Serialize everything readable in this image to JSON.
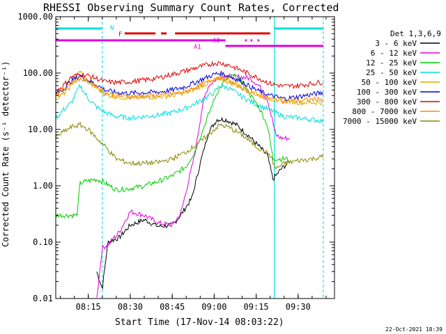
{
  "chart_data": {
    "type": "line",
    "title": "RHESSI Observing Summary Count Rates, Corrected",
    "xlabel": "Start Time (17-Nov-14 08:03:22)",
    "ylabel": "Corrected Count Rate (s⁻¹ detector⁻¹)",
    "yscale": "log",
    "ylim": [
      0.01,
      1000
    ],
    "xlim": [
      "08:03:22",
      "09:43:00"
    ],
    "grid": false,
    "legend_position": "right",
    "x_ticks": [
      "08:15",
      "08:30",
      "08:45",
      "09:00",
      "09:15",
      "09:30"
    ],
    "y_ticks": [
      "1000.00",
      "100.00",
      "10.00",
      "1.00",
      "0.10",
      "0.01"
    ],
    "legend_header": "Det 1,3,6,9",
    "timestamp": "22-Oct-2021 18:39",
    "vertical_markers": [
      {
        "time": "08:03:22",
        "color": "#00dddd",
        "style": "solid"
      },
      {
        "time": "08:20:00",
        "color": "#00dddd",
        "style": "dashed"
      },
      {
        "time": "09:21:30",
        "color": "#00dddd",
        "style": "solid"
      },
      {
        "time": "09:21:30",
        "color": "#00dddd",
        "style": "dashed"
      },
      {
        "time": "09:39:00",
        "color": "#00dddd",
        "style": "dashed"
      }
    ],
    "flag_bars": [
      {
        "label": "N",
        "color": "#00dddd",
        "segments": [
          [
            "08:03:22",
            "08:20:00"
          ],
          [
            "09:21:30",
            "09:39:00"
          ]
        ]
      },
      {
        "label": "F",
        "color": "#dd0000",
        "segments": [
          [
            "08:28:00",
            "08:39:00"
          ],
          [
            "08:41:00",
            "08:43:00"
          ],
          [
            "08:46:00",
            "09:20:00"
          ]
        ]
      },
      {
        "label": "A0",
        "color": "#dd00dd",
        "segments": [
          [
            "08:03:22",
            "09:04:00"
          ],
          [
            "09:11:00",
            "09:11:40"
          ],
          [
            "09:13:00",
            "09:13:40"
          ],
          [
            "09:15:30",
            "09:16:10"
          ]
        ]
      },
      {
        "label": "A1",
        "color": "#dd00dd",
        "segments": [
          [
            "09:04:00",
            "09:39:00"
          ]
        ]
      }
    ],
    "series": [
      {
        "name": "3 - 6 keV",
        "color": "#000000",
        "x": [
          "08:18",
          "08:20",
          "08:22",
          "08:26",
          "08:30",
          "08:35",
          "08:40",
          "08:45",
          "08:48",
          "08:52",
          "08:55",
          "08:58",
          "09:01",
          "09:04",
          "09:08",
          "09:12",
          "09:16",
          "09:19",
          "09:21",
          "09:24",
          "09:27"
        ],
        "values": [
          0.03,
          0.015,
          0.1,
          0.12,
          0.2,
          0.25,
          0.19,
          0.2,
          0.3,
          0.6,
          2.5,
          9,
          15,
          15,
          12,
          8,
          5,
          3.5,
          1.3,
          2,
          2.7
        ]
      },
      {
        "name": "6 - 12 keV",
        "color": "#dd00dd",
        "x": [
          "08:18",
          "08:20",
          "08:22",
          "08:26",
          "08:30",
          "08:35",
          "08:40",
          "08:45",
          "08:48",
          "08:50",
          "08:53",
          "08:56",
          "08:58",
          "09:01",
          "09:04",
          "09:07",
          "09:10",
          "09:13",
          "09:16",
          "09:19",
          "09:22",
          "09:24",
          "09:27"
        ],
        "values": [
          0.01,
          0.08,
          0.09,
          0.15,
          0.35,
          0.3,
          0.22,
          0.2,
          0.32,
          0.8,
          3.5,
          30,
          60,
          80,
          90,
          85,
          85,
          80,
          60,
          35,
          8,
          7,
          7
        ]
      },
      {
        "name": "12 - 25 keV",
        "color": "#00cc00",
        "x": [
          "08:03",
          "08:11",
          "08:12",
          "08:14",
          "08:18",
          "08:20",
          "08:25",
          "08:30",
          "08:35",
          "08:40",
          "08:45",
          "08:50",
          "08:53",
          "08:56",
          "08:59",
          "09:01",
          "09:04",
          "09:07",
          "09:10",
          "09:13",
          "09:16",
          "09:19",
          "09:21",
          "09:24",
          "09:27"
        ],
        "values": [
          0.3,
          0.3,
          1.1,
          1.2,
          1.3,
          1.2,
          0.85,
          0.9,
          1,
          1.2,
          1.5,
          2.2,
          4,
          10,
          25,
          45,
          75,
          90,
          70,
          40,
          25,
          12,
          3,
          3,
          3
        ]
      },
      {
        "name": "25 - 50 keV",
        "color": "#00dddd",
        "x": [
          "08:03",
          "08:06",
          "08:09",
          "08:12",
          "08:15",
          "08:18",
          "08:21",
          "08:25",
          "08:30",
          "08:35",
          "08:40",
          "08:45",
          "08:50",
          "08:55",
          "09:00",
          "09:02",
          "09:05",
          "09:10",
          "09:15",
          "09:20",
          "09:25",
          "09:30",
          "09:35",
          "09:39"
        ],
        "values": [
          15,
          22,
          30,
          60,
          35,
          25,
          20,
          17,
          16,
          17,
          18,
          20,
          24,
          32,
          45,
          60,
          55,
          38,
          28,
          22,
          17,
          16,
          15,
          14
        ]
      },
      {
        "name": "50 - 100 keV",
        "color": "#ddaa00",
        "x": [
          "08:03",
          "08:06",
          "08:09",
          "08:12",
          "08:15",
          "08:18",
          "08:21",
          "08:25",
          "08:30",
          "08:35",
          "08:40",
          "08:45",
          "08:50",
          "08:55",
          "09:00",
          "09:02",
          "09:05",
          "09:10",
          "09:15",
          "09:20",
          "09:25",
          "09:30",
          "09:35",
          "09:39"
        ],
        "values": [
          35,
          42,
          60,
          110,
          70,
          55,
          42,
          38,
          36,
          37,
          38,
          40,
          45,
          58,
          75,
          80,
          70,
          55,
          42,
          35,
          32,
          30,
          30,
          30
        ]
      },
      {
        "name": "100 - 300 keV",
        "color": "#0000cc",
        "x": [
          "08:03",
          "08:06",
          "08:09",
          "08:12",
          "08:15",
          "08:18",
          "08:21",
          "08:25",
          "08:30",
          "08:35",
          "08:40",
          "08:45",
          "08:50",
          "08:55",
          "09:00",
          "09:02",
          "09:05",
          "09:10",
          "09:15",
          "09:20",
          "09:25",
          "09:30",
          "09:35",
          "09:39"
        ],
        "values": [
          42,
          52,
          72,
          90,
          75,
          62,
          50,
          45,
          44,
          45,
          46,
          50,
          58,
          75,
          95,
          100,
          90,
          70,
          50,
          40,
          35,
          38,
          42,
          45
        ]
      },
      {
        "name": "300 - 800 keV",
        "color": "#dd0000",
        "x": [
          "08:03",
          "08:06",
          "08:09",
          "08:12",
          "08:15",
          "08:18",
          "08:21",
          "08:25",
          "08:30",
          "08:35",
          "08:40",
          "08:45",
          "08:50",
          "08:55",
          "09:00",
          "09:02",
          "09:05",
          "09:10",
          "09:15",
          "09:20",
          "09:25",
          "09:30",
          "09:35",
          "09:39"
        ],
        "values": [
          45,
          60,
          85,
          95,
          90,
          80,
          70,
          68,
          70,
          75,
          82,
          95,
          110,
          130,
          150,
          150,
          140,
          110,
          85,
          65,
          58,
          60,
          65,
          70
        ]
      },
      {
        "name": "800 - 7000 keV",
        "color": "#ff8800",
        "x": [
          "08:03",
          "08:06",
          "08:09",
          "08:12",
          "08:15",
          "08:18",
          "08:21",
          "08:25",
          "08:30",
          "08:35",
          "08:40",
          "08:45",
          "08:50",
          "08:55",
          "09:00",
          "09:02",
          "09:05",
          "09:10",
          "09:15",
          "09:20",
          "09:25",
          "09:30",
          "09:35",
          "09:39"
        ],
        "values": [
          40,
          50,
          68,
          80,
          70,
          58,
          45,
          40,
          38,
          39,
          40,
          42,
          48,
          60,
          78,
          85,
          75,
          55,
          42,
          35,
          32,
          32,
          34,
          35
        ]
      },
      {
        "name": "7000 - 15000 keV",
        "color": "#888800",
        "x": [
          "08:03",
          "08:06",
          "08:09",
          "08:12",
          "08:15",
          "08:18",
          "08:21",
          "08:25",
          "08:30",
          "08:35",
          "08:40",
          "08:45",
          "08:50",
          "08:55",
          "09:00",
          "09:02",
          "09:05",
          "09:10",
          "09:15",
          "09:20",
          "09:22",
          "09:25",
          "09:30",
          "09:35",
          "09:39"
        ],
        "values": [
          7,
          9,
          11,
          12,
          10,
          7,
          5,
          3,
          2.5,
          2.5,
          2.6,
          3,
          4,
          6,
          10,
          12,
          11,
          8,
          5,
          3.5,
          2,
          2.5,
          2.8,
          3,
          3.3
        ]
      }
    ]
  }
}
